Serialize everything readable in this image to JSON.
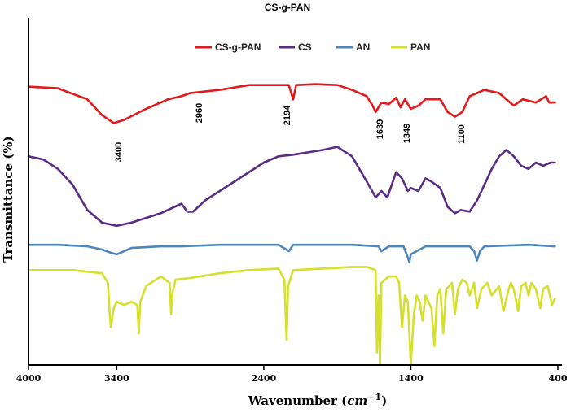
{
  "chart_data": {
    "type": "line",
    "title": "CS-g-PAN",
    "xlabel": "Wavenumber (cm⁻¹)",
    "xlabel_main": "Wavenumber (",
    "xlabel_unit": "cm",
    "xlabel_exp": "−1",
    "xlabel_close": ")",
    "ylabel": "Transmittance (%)",
    "xlim": [
      4000,
      400
    ],
    "x_ticks": [
      "4000",
      "3400",
      "2400",
      "1400",
      "400"
    ],
    "y_ticks": [],
    "legend_position": "top",
    "annotations": [
      "3400",
      "2960",
      "2194",
      "1639",
      "1349",
      "1100"
    ],
    "series": [
      {
        "name": "CS-g-PAN",
        "color": "#e31a1c",
        "points": [
          [
            4000,
            88
          ],
          [
            3800,
            87.5
          ],
          [
            3600,
            84
          ],
          [
            3500,
            79
          ],
          [
            3420,
            76.5
          ],
          [
            3350,
            77.5
          ],
          [
            3200,
            81
          ],
          [
            3050,
            84
          ],
          [
            2960,
            85
          ],
          [
            2900,
            86
          ],
          [
            2700,
            87
          ],
          [
            2500,
            88.5
          ],
          [
            2300,
            88.5
          ],
          [
            2230,
            88.5
          ],
          [
            2200,
            84
          ],
          [
            2180,
            88.5
          ],
          [
            2050,
            88.8
          ],
          [
            1900,
            88.5
          ],
          [
            1800,
            87
          ],
          [
            1700,
            85
          ],
          [
            1660,
            82
          ],
          [
            1639,
            80
          ],
          [
            1600,
            83
          ],
          [
            1550,
            82.5
          ],
          [
            1500,
            84.5
          ],
          [
            1470,
            81.5
          ],
          [
            1440,
            84
          ],
          [
            1400,
            81
          ],
          [
            1349,
            82
          ],
          [
            1300,
            84
          ],
          [
            1200,
            84
          ],
          [
            1150,
            80
          ],
          [
            1100,
            78.5
          ],
          [
            1050,
            80
          ],
          [
            1000,
            85
          ],
          [
            900,
            87
          ],
          [
            800,
            86
          ],
          [
            700,
            82
          ],
          [
            640,
            84
          ],
          [
            550,
            83
          ],
          [
            480,
            85
          ],
          [
            460,
            83
          ],
          [
            420,
            83
          ]
        ]
      },
      {
        "name": "CS",
        "color": "#5b2c83",
        "points": [
          [
            4000,
            66
          ],
          [
            3900,
            65
          ],
          [
            3800,
            62
          ],
          [
            3700,
            57
          ],
          [
            3600,
            49
          ],
          [
            3500,
            45
          ],
          [
            3400,
            44
          ],
          [
            3300,
            45
          ],
          [
            3100,
            48
          ],
          [
            2960,
            51
          ],
          [
            2920,
            48.5
          ],
          [
            2880,
            48.5
          ],
          [
            2800,
            52
          ],
          [
            2600,
            58
          ],
          [
            2400,
            64
          ],
          [
            2300,
            66
          ],
          [
            2200,
            66.5
          ],
          [
            2000,
            68
          ],
          [
            1900,
            69
          ],
          [
            1800,
            66
          ],
          [
            1700,
            58
          ],
          [
            1639,
            53
          ],
          [
            1600,
            55
          ],
          [
            1560,
            53
          ],
          [
            1500,
            61
          ],
          [
            1460,
            59
          ],
          [
            1420,
            55
          ],
          [
            1400,
            56
          ],
          [
            1349,
            55
          ],
          [
            1300,
            59
          ],
          [
            1260,
            58
          ],
          [
            1200,
            56
          ],
          [
            1150,
            50
          ],
          [
            1100,
            48
          ],
          [
            1060,
            49
          ],
          [
            1000,
            48.5
          ],
          [
            950,
            52
          ],
          [
            900,
            57
          ],
          [
            850,
            62
          ],
          [
            800,
            66
          ],
          [
            750,
            68
          ],
          [
            700,
            66
          ],
          [
            650,
            63
          ],
          [
            600,
            62
          ],
          [
            550,
            64
          ],
          [
            500,
            63
          ],
          [
            450,
            64
          ],
          [
            420,
            64
          ]
        ]
      },
      {
        "name": "AN",
        "color": "#4f86b9",
        "points": [
          [
            4000,
            38
          ],
          [
            3800,
            38
          ],
          [
            3600,
            37.5
          ],
          [
            3500,
            36.5
          ],
          [
            3440,
            35.5
          ],
          [
            3400,
            35
          ],
          [
            3300,
            37
          ],
          [
            3100,
            37.5
          ],
          [
            2960,
            37.5
          ],
          [
            2700,
            38
          ],
          [
            2500,
            38
          ],
          [
            2300,
            38
          ],
          [
            2229,
            36
          ],
          [
            2200,
            38
          ],
          [
            2000,
            38
          ],
          [
            1800,
            38
          ],
          [
            1620,
            37.5
          ],
          [
            1600,
            36
          ],
          [
            1550,
            37.5
          ],
          [
            1450,
            37.5
          ],
          [
            1420,
            34
          ],
          [
            1410,
            32.5
          ],
          [
            1400,
            35
          ],
          [
            1300,
            37.5
          ],
          [
            1000,
            37.5
          ],
          [
            970,
            36
          ],
          [
            950,
            33
          ],
          [
            930,
            36
          ],
          [
            900,
            37.5
          ],
          [
            600,
            38
          ],
          [
            420,
            37.5
          ]
        ]
      },
      {
        "name": "PAN",
        "color": "#d4e02a",
        "points": [
          [
            4000,
            30
          ],
          [
            3700,
            30
          ],
          [
            3500,
            29
          ],
          [
            3460,
            26
          ],
          [
            3450,
            18
          ],
          [
            3440,
            12
          ],
          [
            3420,
            18
          ],
          [
            3400,
            20
          ],
          [
            3350,
            19
          ],
          [
            3300,
            20
          ],
          [
            3260,
            19
          ],
          [
            3250,
            10
          ],
          [
            3240,
            20
          ],
          [
            3200,
            25
          ],
          [
            3100,
            28
          ],
          [
            3040,
            26
          ],
          [
            3030,
            16
          ],
          [
            3020,
            23
          ],
          [
            3000,
            27
          ],
          [
            2900,
            27.5
          ],
          [
            2700,
            29
          ],
          [
            2500,
            30
          ],
          [
            2300,
            30.5
          ],
          [
            2260,
            27
          ],
          [
            2245,
            8
          ],
          [
            2235,
            25
          ],
          [
            2200,
            30
          ],
          [
            2000,
            30.5
          ],
          [
            1800,
            31
          ],
          [
            1700,
            31
          ],
          [
            1640,
            30
          ],
          [
            1630,
            4
          ],
          [
            1620,
            22
          ],
          [
            1610,
            0
          ],
          [
            1600,
            26
          ],
          [
            1550,
            28
          ],
          [
            1500,
            28
          ],
          [
            1480,
            26
          ],
          [
            1460,
            12
          ],
          [
            1440,
            22
          ],
          [
            1420,
            20
          ],
          [
            1400,
            0
          ],
          [
            1380,
            16
          ],
          [
            1360,
            22
          ],
          [
            1340,
            20
          ],
          [
            1320,
            14
          ],
          [
            1300,
            22
          ],
          [
            1260,
            18
          ],
          [
            1240,
            6
          ],
          [
            1220,
            22
          ],
          [
            1200,
            24
          ],
          [
            1180,
            10
          ],
          [
            1160,
            24
          ],
          [
            1120,
            26
          ],
          [
            1100,
            16
          ],
          [
            1080,
            24
          ],
          [
            1050,
            27
          ],
          [
            1020,
            26
          ],
          [
            1000,
            22
          ],
          [
            970,
            26
          ],
          [
            950,
            18
          ],
          [
            920,
            24
          ],
          [
            880,
            26
          ],
          [
            850,
            22
          ],
          [
            800,
            25
          ],
          [
            770,
            17
          ],
          [
            740,
            23
          ],
          [
            720,
            26
          ],
          [
            700,
            24
          ],
          [
            670,
            17
          ],
          [
            650,
            25
          ],
          [
            620,
            26
          ],
          [
            600,
            22
          ],
          [
            580,
            26
          ],
          [
            550,
            24
          ],
          [
            520,
            18
          ],
          [
            500,
            24
          ],
          [
            470,
            25
          ],
          [
            440,
            19
          ],
          [
            420,
            21
          ]
        ]
      }
    ]
  }
}
